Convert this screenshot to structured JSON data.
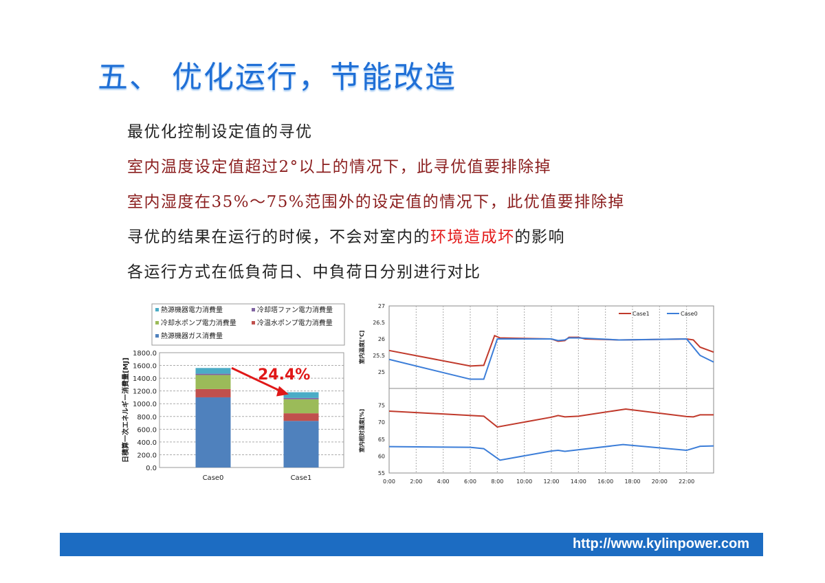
{
  "title": "五、 优化运行，节能改造",
  "lines": [
    {
      "text": "最优化控制设定值的寻优"
    },
    {
      "text": "室内温度设定值超过2°以上的情况下，此寻优值要排除掉"
    },
    {
      "text": "室内湿度在35%～75%范围外的设定值的情况下，此优值要排除掉"
    },
    {
      "pre": "寻优的结果在运行的时候，不会对室内的",
      "highlight": "环境造成坏",
      "post": "的影响"
    },
    {
      "text": "各运行方式在低負荷日、中負荷日分别进行对比"
    }
  ],
  "footer": {
    "url": "http://www.kylinpower.com"
  },
  "chart_data": [
    {
      "type": "bar",
      "stacked": true,
      "categories": [
        "Case0",
        "Case1"
      ],
      "ylabel": "日積算一次エネルギー消費量[MJ]",
      "ylim": [
        0,
        1800
      ],
      "yticks": [
        "0.0",
        "200.0",
        "400.0",
        "600.0",
        "800.0",
        "1000.0",
        "1200.0",
        "1400.0",
        "1600.0",
        "1800.0"
      ],
      "grid": true,
      "legend": "top",
      "annotation": "24.4%",
      "series": [
        {
          "name": "熱源機器ガス消費量",
          "color": "#4f81bd",
          "values": [
            1100,
            730
          ]
        },
        {
          "name": "冷温水ポンプ電力消費量",
          "color": "#c0504d",
          "values": [
            130,
            120
          ]
        },
        {
          "name": "冷却水ポンプ電力消費量",
          "color": "#9bbb59",
          "values": [
            220,
            220
          ]
        },
        {
          "name": "冷却塔ファン電力消費量",
          "color": "#8064a2",
          "values": [
            20,
            20
          ]
        },
        {
          "name": "熱源機器電力消費量",
          "color": "#4bacc6",
          "values": [
            90,
            90
          ]
        }
      ],
      "legend_order": [
        4,
        3,
        2,
        1,
        0
      ]
    },
    {
      "type": "line",
      "xticks": [
        "0:00",
        "2:00",
        "4:00",
        "6:00",
        "8:00",
        "10:00",
        "12:00",
        "14:00",
        "16:00",
        "18:00",
        "20:00",
        "22:00"
      ],
      "xlim": [
        0,
        24
      ],
      "legend": "top-right",
      "panels": [
        {
          "ylabel": "室内温度[℃]",
          "ylim": [
            24.5,
            27
          ],
          "yticks": [
            "25",
            "25.5",
            "26",
            "26.5",
            "27"
          ],
          "series": [
            {
              "name": "Case1",
              "color": "#c0392b",
              "x": [
                0,
                6,
                7,
                7.8,
                8.2,
                12,
                12.5,
                13,
                13.3,
                14,
                14.5,
                17,
                19,
                22,
                22.5,
                23,
                24
              ],
              "y": [
                25.65,
                25.18,
                25.2,
                26.1,
                26.03,
                26,
                25.93,
                25.95,
                26.05,
                26.05,
                26,
                25.97,
                25.98,
                26,
                25.97,
                25.75,
                25.6
              ]
            },
            {
              "name": "Case0",
              "color": "#3b7dd8",
              "x": [
                0,
                6,
                7,
                8,
                12,
                12.5,
                13,
                13.3,
                14,
                17,
                22,
                23,
                24
              ],
              "y": [
                25.38,
                24.78,
                24.78,
                26,
                26,
                25.95,
                25.97,
                26.03,
                26.03,
                25.97,
                26,
                25.5,
                25.3
              ]
            }
          ]
        },
        {
          "ylabel": "室内相対湿度[%]",
          "ylim": [
            55,
            80
          ],
          "yticks": [
            "55",
            "60",
            "65",
            "70",
            "75"
          ],
          "series": [
            {
              "name": "Case1",
              "color": "#c0392b",
              "x": [
                0,
                7,
                8,
                12,
                12.5,
                13,
                14,
                17.5,
                22,
                22.5,
                23,
                24
              ],
              "y": [
                73.3,
                71.8,
                68.6,
                71.5,
                72,
                71.6,
                71.8,
                73.9,
                71.7,
                71.6,
                72.2,
                72.2
              ]
            },
            {
              "name": "Case0",
              "color": "#3b7dd8",
              "x": [
                0,
                6,
                7,
                8.2,
                12,
                12.5,
                13,
                17.3,
                22,
                23,
                24
              ],
              "y": [
                62.8,
                62.6,
                62.2,
                58.8,
                61.5,
                61.7,
                61.4,
                63.4,
                61.7,
                62.9,
                63
              ]
            }
          ]
        }
      ]
    }
  ]
}
